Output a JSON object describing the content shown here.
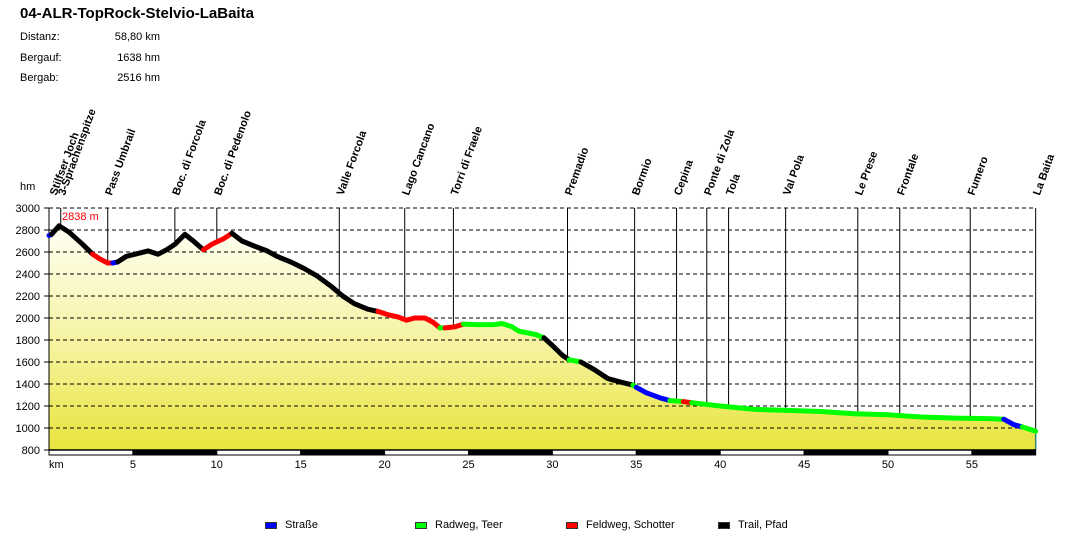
{
  "header": {
    "title": "04-ALR-TopRock-Stelvio-LaBaita",
    "stats": [
      {
        "label": "Distanz:",
        "value": "58,80 km"
      },
      {
        "label": "Bergauf:",
        "value": "1638 hm"
      },
      {
        "label": "Bergab:",
        "value": "2516 hm"
      }
    ]
  },
  "chart_data": {
    "type": "area",
    "title": "04-ALR-TopRock-Stelvio-LaBaita",
    "xlabel": "km",
    "ylabel": "hm",
    "xlim": [
      0,
      58.8
    ],
    "ylim": [
      800,
      3000
    ],
    "x_ticks": [
      5,
      10,
      15,
      20,
      25,
      30,
      35,
      40,
      45,
      50,
      55
    ],
    "y_ticks": [
      800,
      1000,
      1200,
      1400,
      1600,
      1800,
      2000,
      2200,
      2400,
      2600,
      2800,
      3000
    ],
    "grid": "dashed horizontal",
    "max_annotation": {
      "text": "2838 m",
      "km": 0.6,
      "elev": 2838,
      "color": "#ff0000"
    },
    "waypoints": [
      {
        "name": "Stilfser Joch",
        "km": 0.2
      },
      {
        "name": "3-Sprachenspitze",
        "km": 0.7
      },
      {
        "name": "Pass Umbrail",
        "km": 3.5
      },
      {
        "name": "Boc. di Forcola",
        "km": 7.5
      },
      {
        "name": "Boc. di Pedenolo",
        "km": 10.0
      },
      {
        "name": "Valle Forcola",
        "km": 17.3
      },
      {
        "name": "Lago Cancano",
        "km": 21.2
      },
      {
        "name": "Torri di Fraele",
        "km": 24.1
      },
      {
        "name": "Premadio",
        "km": 30.9
      },
      {
        "name": "Bormio",
        "km": 34.9
      },
      {
        "name": "Cepina",
        "km": 37.4
      },
      {
        "name": "Ponte di Zola",
        "km": 39.2
      },
      {
        "name": "Tola",
        "km": 40.5
      },
      {
        "name": "Val Pola",
        "km": 43.9
      },
      {
        "name": "Le Prese",
        "km": 48.2
      },
      {
        "name": "Frontale",
        "km": 50.7
      },
      {
        "name": "Fumero",
        "km": 54.9
      },
      {
        "name": "La Baita",
        "km": 58.8
      }
    ],
    "legend": [
      {
        "name": "Straße",
        "color": "#0000ff"
      },
      {
        "name": "Radweg, Teer",
        "color": "#00ff00"
      },
      {
        "name": "Feldweg, Schotter",
        "color": "#ff0000"
      },
      {
        "name": "Trail, Pfad",
        "color": "#000000"
      }
    ],
    "series": [
      {
        "surface": "Straße",
        "color": "#0000ff",
        "points": [
          [
            0,
            2750
          ],
          [
            0.15,
            2760
          ]
        ]
      },
      {
        "surface": "Trail, Pfad",
        "color": "#000000",
        "points": [
          [
            0.15,
            2760
          ],
          [
            0.6,
            2838
          ],
          [
            1.2,
            2780
          ],
          [
            2.0,
            2670
          ],
          [
            2.6,
            2580
          ]
        ]
      },
      {
        "surface": "Feldweg, Schotter",
        "color": "#ff0000",
        "points": [
          [
            2.6,
            2580
          ],
          [
            3.0,
            2540
          ],
          [
            3.5,
            2500
          ],
          [
            3.8,
            2500
          ]
        ]
      },
      {
        "surface": "Straße",
        "color": "#0000ff",
        "points": [
          [
            3.8,
            2500
          ],
          [
            4.1,
            2510
          ]
        ]
      },
      {
        "surface": "Trail, Pfad",
        "color": "#000000",
        "points": [
          [
            4.1,
            2510
          ],
          [
            4.6,
            2560
          ],
          [
            5.4,
            2590
          ],
          [
            5.9,
            2610
          ],
          [
            6.5,
            2580
          ],
          [
            7.0,
            2620
          ],
          [
            7.5,
            2670
          ],
          [
            8.1,
            2760
          ],
          [
            8.6,
            2700
          ],
          [
            9.2,
            2620
          ]
        ]
      },
      {
        "surface": "Feldweg, Schotter",
        "color": "#ff0000",
        "points": [
          [
            9.2,
            2620
          ],
          [
            9.7,
            2670
          ],
          [
            10.4,
            2720
          ],
          [
            10.9,
            2770
          ]
        ]
      },
      {
        "surface": "Trail, Pfad",
        "color": "#000000",
        "points": [
          [
            10.9,
            2770
          ],
          [
            11.5,
            2700
          ],
          [
            12.3,
            2650
          ],
          [
            13.0,
            2610
          ],
          [
            13.6,
            2560
          ],
          [
            14.4,
            2510
          ],
          [
            15.2,
            2450
          ],
          [
            16.0,
            2380
          ],
          [
            16.8,
            2290
          ],
          [
            17.5,
            2200
          ],
          [
            18.2,
            2130
          ],
          [
            19.0,
            2080
          ],
          [
            19.6,
            2060
          ]
        ]
      },
      {
        "surface": "Feldweg, Schotter",
        "color": "#ff0000",
        "points": [
          [
            19.6,
            2060
          ],
          [
            20.2,
            2030
          ],
          [
            20.8,
            2010
          ],
          [
            21.3,
            1980
          ],
          [
            21.8,
            2000
          ],
          [
            22.4,
            2000
          ],
          [
            22.9,
            1960
          ],
          [
            23.3,
            1910
          ]
        ]
      },
      {
        "surface": "Radweg, Teer",
        "color": "#00ff00",
        "points": [
          [
            23.3,
            1910
          ],
          [
            23.6,
            1910
          ]
        ]
      },
      {
        "surface": "Feldweg, Schotter",
        "color": "#ff0000",
        "points": [
          [
            23.6,
            1910
          ],
          [
            24.2,
            1920
          ],
          [
            24.7,
            1945
          ]
        ]
      },
      {
        "surface": "Radweg, Teer",
        "color": "#00ff00",
        "points": [
          [
            24.7,
            1945
          ],
          [
            25.5,
            1940
          ],
          [
            26.5,
            1940
          ],
          [
            27.0,
            1950
          ],
          [
            27.6,
            1920
          ],
          [
            28.0,
            1880
          ],
          [
            29.0,
            1850
          ],
          [
            29.5,
            1820
          ]
        ]
      },
      {
        "surface": "Trail, Pfad",
        "color": "#000000",
        "points": [
          [
            29.5,
            1820
          ],
          [
            30.0,
            1750
          ],
          [
            30.6,
            1660
          ],
          [
            31.0,
            1620
          ]
        ]
      },
      {
        "surface": "Radweg, Teer",
        "color": "#00ff00",
        "points": [
          [
            31.0,
            1620
          ],
          [
            31.7,
            1600
          ]
        ]
      },
      {
        "surface": "Trail, Pfad",
        "color": "#000000",
        "points": [
          [
            31.7,
            1600
          ],
          [
            32.5,
            1530
          ],
          [
            33.3,
            1450
          ],
          [
            34.0,
            1420
          ],
          [
            34.8,
            1390
          ]
        ]
      },
      {
        "surface": "Radweg, Teer",
        "color": "#00ff00",
        "points": [
          [
            34.8,
            1390
          ],
          [
            35.0,
            1370
          ]
        ]
      },
      {
        "surface": "Straße",
        "color": "#0000ff",
        "points": [
          [
            35.0,
            1370
          ],
          [
            35.6,
            1320
          ],
          [
            36.5,
            1270
          ],
          [
            37.0,
            1250
          ]
        ]
      },
      {
        "surface": "Radweg, Teer",
        "color": "#00ff00",
        "points": [
          [
            37.0,
            1250
          ],
          [
            37.8,
            1240
          ]
        ]
      },
      {
        "surface": "Feldweg, Schotter",
        "color": "#ff0000",
        "points": [
          [
            37.8,
            1240
          ],
          [
            38.3,
            1230
          ]
        ]
      },
      {
        "surface": "Radweg, Teer",
        "color": "#00ff00",
        "points": [
          [
            38.3,
            1230
          ],
          [
            40.0,
            1200
          ],
          [
            42.0,
            1170
          ],
          [
            44.0,
            1160
          ],
          [
            46.0,
            1150
          ],
          [
            48.0,
            1130
          ],
          [
            50.0,
            1120
          ],
          [
            52.0,
            1100
          ],
          [
            54.0,
            1090
          ],
          [
            56.0,
            1085
          ],
          [
            56.9,
            1080
          ]
        ]
      },
      {
        "surface": "Straße",
        "color": "#0000ff",
        "points": [
          [
            56.9,
            1080
          ],
          [
            57.5,
            1030
          ],
          [
            58.0,
            1010
          ]
        ]
      },
      {
        "surface": "Radweg, Teer",
        "color": "#00ff00",
        "points": [
          [
            58.0,
            1010
          ],
          [
            58.8,
            970
          ]
        ]
      }
    ]
  }
}
